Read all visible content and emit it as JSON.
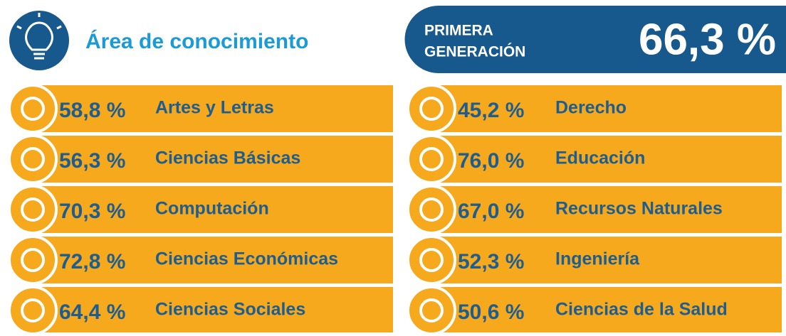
{
  "header": {
    "title": "Área de conocimiento"
  },
  "badge": {
    "label_lines": [
      "PRIMERA",
      "GENERACIÓN"
    ],
    "value": "66,3 %"
  },
  "columns": [
    {
      "items": [
        {
          "percent": "58,8 %",
          "label": "Artes y Letras"
        },
        {
          "percent": "56,3 %",
          "label": "Ciencias Básicas"
        },
        {
          "percent": "70,3 %",
          "label": "Computación"
        },
        {
          "percent": "72,8 %",
          "label": "Ciencias Económicas"
        },
        {
          "percent": "64,4 %",
          "label": "Ciencias Sociales"
        }
      ]
    },
    {
      "items": [
        {
          "percent": "45,2 %",
          "label": "Derecho"
        },
        {
          "percent": "76,0 %",
          "label": "Educación"
        },
        {
          "percent": "67,0 %",
          "label": "Recursos Naturales"
        },
        {
          "percent": "52,3 %",
          "label": "Ingeniería"
        },
        {
          "percent": "50,6 %",
          "label": "Ciencias de la Salud"
        }
      ]
    }
  ]
}
